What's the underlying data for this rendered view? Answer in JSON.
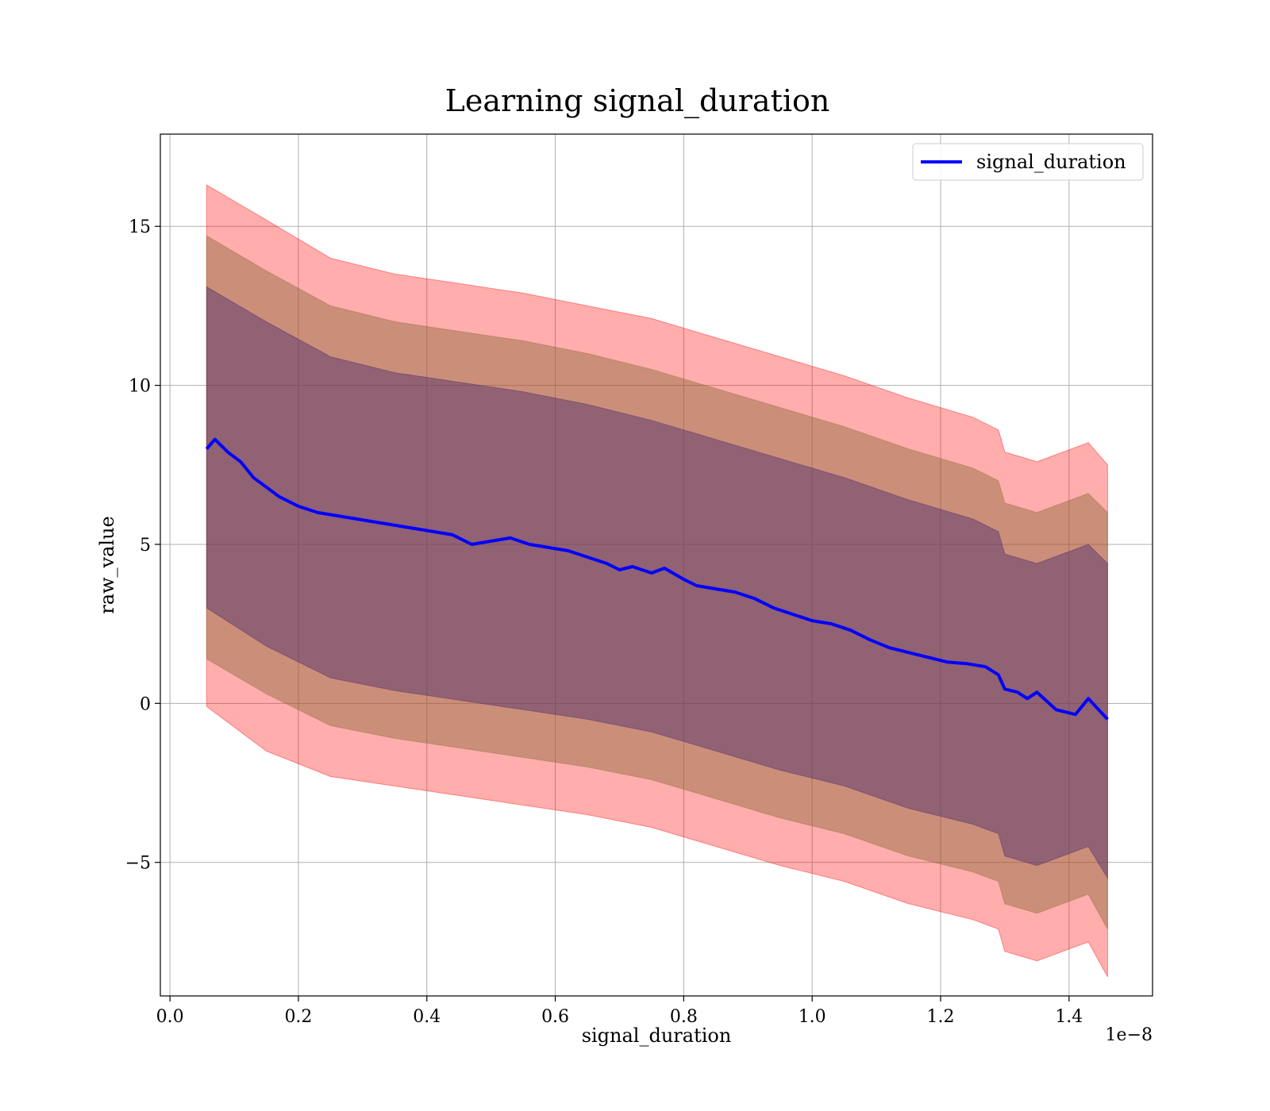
{
  "chart_data": {
    "type": "line",
    "title": "Learning signal_duration",
    "xlabel": "signal_duration",
    "ylabel": "raw_value",
    "x_offset_text": "1e−8",
    "xlim": [
      -0.015,
      1.53
    ],
    "ylim": [
      -9.2,
      17.9
    ],
    "grid": true,
    "legend_position": "upper right",
    "x_ticks": [
      0.0,
      0.2,
      0.4,
      0.6,
      0.8,
      1.0,
      1.2,
      1.4
    ],
    "x_tick_labels": [
      "0.0",
      "0.2",
      "0.4",
      "0.6",
      "0.8",
      "1.0",
      "1.2",
      "1.4"
    ],
    "y_ticks": [
      -5,
      0,
      5,
      10,
      15
    ],
    "y_tick_labels": [
      "−5",
      "0",
      "5",
      "10",
      "15"
    ],
    "series": [
      {
        "name": "signal_duration",
        "color": "#0000ff",
        "x": [
          0.057,
          0.07,
          0.09,
          0.11,
          0.13,
          0.15,
          0.17,
          0.2,
          0.23,
          0.26,
          0.29,
          0.32,
          0.35,
          0.38,
          0.41,
          0.44,
          0.47,
          0.5,
          0.53,
          0.56,
          0.59,
          0.62,
          0.65,
          0.68,
          0.7,
          0.72,
          0.75,
          0.77,
          0.8,
          0.82,
          0.85,
          0.88,
          0.91,
          0.94,
          0.97,
          1.0,
          1.03,
          1.06,
          1.09,
          1.12,
          1.15,
          1.18,
          1.21,
          1.24,
          1.27,
          1.29,
          1.3,
          1.32,
          1.335,
          1.35,
          1.38,
          1.41,
          1.43,
          1.46
        ],
        "values": [
          8.0,
          8.3,
          7.9,
          7.6,
          7.1,
          6.8,
          6.5,
          6.2,
          6.0,
          5.9,
          5.8,
          5.7,
          5.6,
          5.5,
          5.4,
          5.3,
          5.0,
          5.1,
          5.2,
          5.0,
          4.9,
          4.8,
          4.6,
          4.4,
          4.2,
          4.3,
          4.1,
          4.25,
          3.9,
          3.7,
          3.6,
          3.5,
          3.3,
          3.0,
          2.8,
          2.6,
          2.5,
          2.3,
          2.0,
          1.75,
          1.6,
          1.45,
          1.3,
          1.25,
          1.15,
          0.9,
          0.45,
          0.35,
          0.15,
          0.35,
          -0.2,
          -0.35,
          0.15,
          -0.5
        ]
      }
    ],
    "bands": [
      {
        "color": "#ff0000",
        "opacity": 0.32,
        "x": [
          0.057,
          0.15,
          0.25,
          0.35,
          0.45,
          0.55,
          0.65,
          0.75,
          0.85,
          0.95,
          1.05,
          1.15,
          1.25,
          1.29,
          1.3,
          1.35,
          1.43,
          1.46
        ],
        "upper": [
          16.3,
          15.2,
          14.0,
          13.5,
          13.2,
          12.9,
          12.5,
          12.1,
          11.5,
          10.9,
          10.3,
          9.6,
          9.0,
          8.6,
          7.9,
          7.6,
          8.2,
          7.5
        ],
        "lower": [
          -0.1,
          -1.5,
          -2.3,
          -2.6,
          -2.9,
          -3.2,
          -3.5,
          -3.9,
          -4.5,
          -5.1,
          -5.6,
          -6.3,
          -6.8,
          -7.1,
          -7.8,
          -8.1,
          -7.5,
          -8.6
        ]
      },
      {
        "color": "#8b6a3a",
        "opacity": 0.45,
        "x": [
          0.057,
          0.15,
          0.25,
          0.35,
          0.45,
          0.55,
          0.65,
          0.75,
          0.85,
          0.95,
          1.05,
          1.15,
          1.25,
          1.29,
          1.3,
          1.35,
          1.43,
          1.46
        ],
        "upper": [
          14.7,
          13.6,
          12.5,
          12.0,
          11.7,
          11.4,
          11.0,
          10.5,
          9.9,
          9.3,
          8.7,
          8.0,
          7.4,
          7.0,
          6.3,
          6.0,
          6.6,
          6.0
        ],
        "lower": [
          1.4,
          0.3,
          -0.7,
          -1.1,
          -1.4,
          -1.7,
          -2.0,
          -2.4,
          -3.0,
          -3.6,
          -4.1,
          -4.8,
          -5.3,
          -5.6,
          -6.3,
          -6.6,
          -6.0,
          -7.1
        ]
      },
      {
        "color": "#4b2a6e",
        "opacity": 0.45,
        "x": [
          0.057,
          0.15,
          0.25,
          0.35,
          0.45,
          0.55,
          0.65,
          0.75,
          0.85,
          0.95,
          1.05,
          1.15,
          1.25,
          1.29,
          1.3,
          1.35,
          1.43,
          1.46
        ],
        "upper": [
          13.1,
          12.0,
          10.9,
          10.4,
          10.1,
          9.8,
          9.4,
          8.9,
          8.3,
          7.7,
          7.1,
          6.4,
          5.8,
          5.4,
          4.7,
          4.4,
          5.0,
          4.4
        ],
        "lower": [
          3.0,
          1.8,
          0.8,
          0.4,
          0.1,
          -0.2,
          -0.5,
          -0.9,
          -1.5,
          -2.1,
          -2.6,
          -3.3,
          -3.8,
          -4.1,
          -4.8,
          -5.1,
          -4.5,
          -5.5
        ]
      }
    ]
  }
}
